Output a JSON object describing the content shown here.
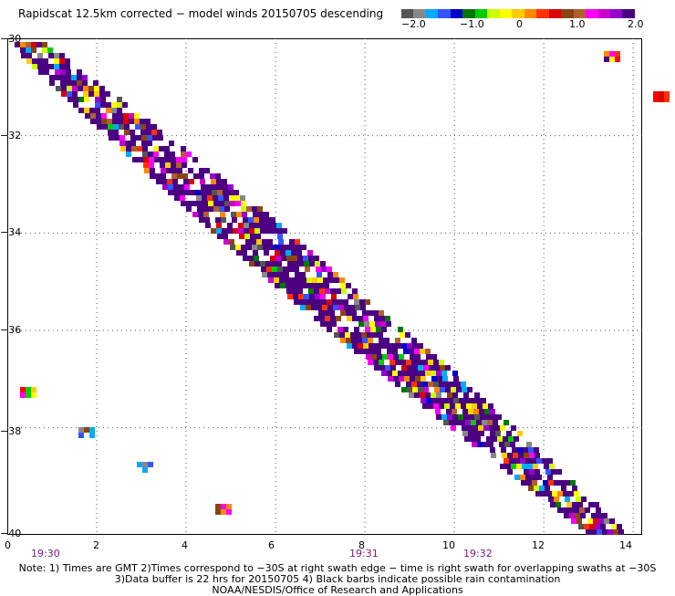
{
  "title": "Rapidscat 12.5km corrected − model winds 20150705 descending",
  "colorbar": {
    "colors": [
      "#555555",
      "#888888",
      "#00aaff",
      "#3355ff",
      "#0000cc",
      "#007700",
      "#00cc00",
      "#ccff00",
      "#ffff00",
      "#ffcc00",
      "#ff8800",
      "#ff3300",
      "#dd0000",
      "#8b4513",
      "#b06030",
      "#ff00ff",
      "#cc00cc",
      "#9900cc",
      "#4b0082"
    ],
    "labels": [
      "−2.0",
      "−1.0",
      "0",
      "1.0",
      "2.0"
    ],
    "range": [
      -2.0,
      2.0
    ]
  },
  "map": {
    "x_ticks": [
      "0",
      "2",
      "4",
      "6",
      "8",
      "10",
      "12",
      "14"
    ],
    "y_ticks": [
      "−30",
      "−32",
      "−34",
      "−36",
      "−38",
      "−40"
    ],
    "lon_range": [
      0,
      14.2
    ],
    "lat_range": [
      -30,
      -40.2
    ],
    "grid": "dotted",
    "time_labels": [
      "19:30",
      "19:31",
      "19:32"
    ]
  },
  "notes": {
    "line1": "Note: 1) Times are GMT 2)Times correspond to −30S at right swath edge − time is right swath for overlapping swaths at −30S",
    "line2": "3)Data buffer is 22 hrs for 20150705 4) Black barbs indicate possible rain contamination",
    "line3": "NOAA/NESDIS/Office of Research and Applications"
  }
}
